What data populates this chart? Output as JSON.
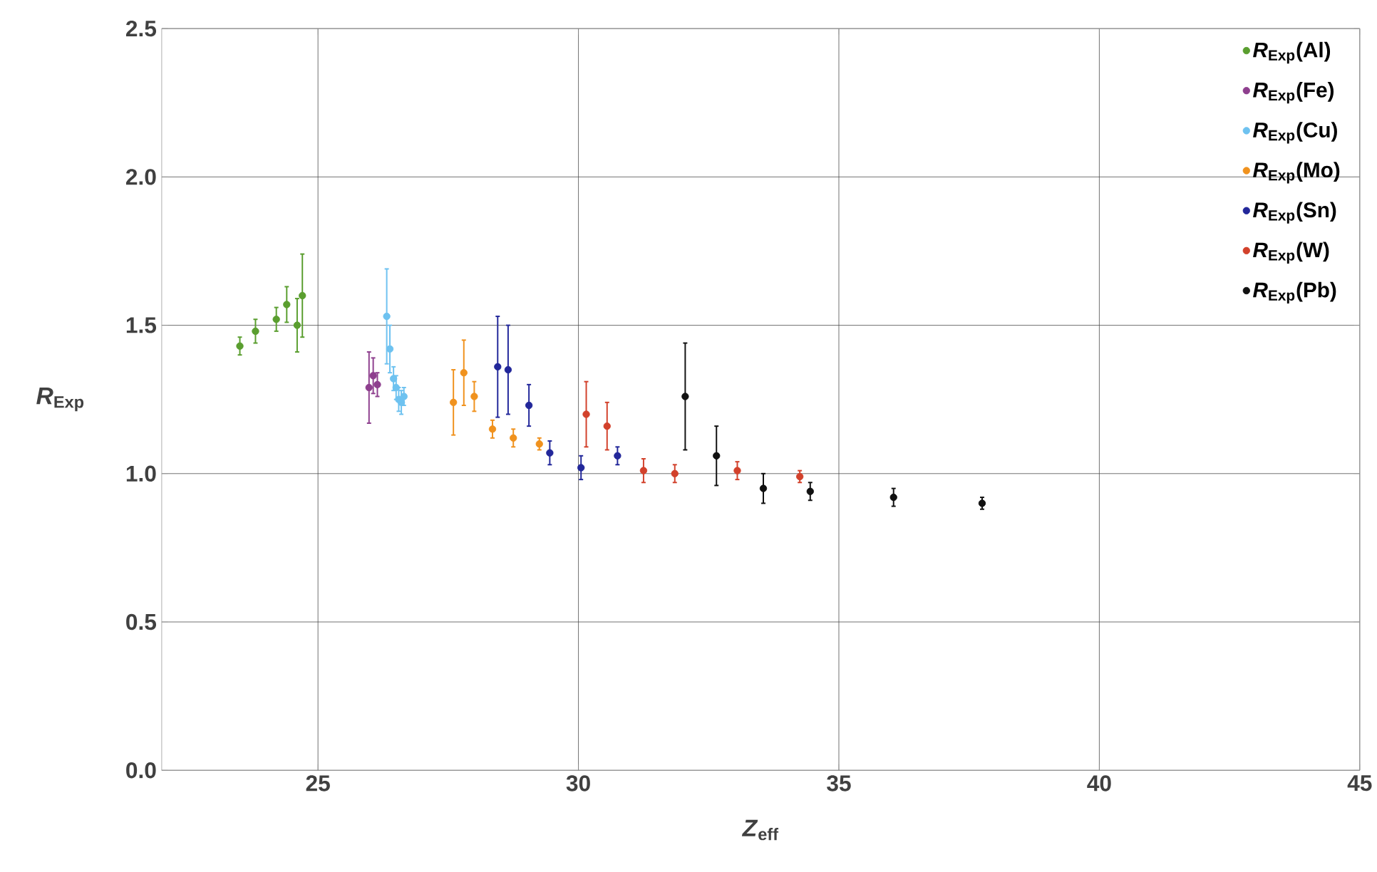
{
  "chart_data": {
    "type": "scatter",
    "xlabel": "*Z*$_{eff}$",
    "ylabel": "*R*$_{Exp}$",
    "xlim": [
      22,
      45
    ],
    "ylim": [
      0,
      2.5
    ],
    "xticks": [
      25,
      30,
      35,
      40,
      45
    ],
    "yticks": [
      {
        "value": 0,
        "label": "0.0"
      },
      {
        "value": 0.5,
        "label": "0.5"
      },
      {
        "value": 1,
        "label": "1.0"
      },
      {
        "value": 1.5,
        "label": "1.5"
      },
      {
        "value": 2,
        "label": "2.0"
      },
      {
        "value": 2.5,
        "label": "2.5"
      }
    ],
    "grid": true,
    "legend": "top right",
    "marker": "circle",
    "series": [
      {
        "name": "*R*$_{Exp}$(Al)",
        "color": "#5a9e2f",
        "x": [
          23.5,
          23.8,
          24.2,
          24.4,
          24.6,
          24.7
        ],
        "values": [
          1.43,
          1.48,
          1.52,
          1.57,
          1.5,
          1.6
        ],
        "errors": [
          0.03,
          0.04,
          0.04,
          0.06,
          0.09,
          0.14
        ]
      },
      {
        "name": "*R*$_{Exp}$(Fe)",
        "color": "#8e3f8e",
        "x": [
          25.98,
          26.06,
          26.14
        ],
        "values": [
          1.29,
          1.33,
          1.3
        ],
        "errors": [
          0.12,
          0.06,
          0.04
        ]
      },
      {
        "name": "*R*$_{Exp}$(Cu)",
        "color": "#6ec2f0",
        "x": [
          26.32,
          26.38,
          26.45,
          26.5,
          26.55,
          26.6,
          26.65
        ],
        "values": [
          1.53,
          1.42,
          1.32,
          1.29,
          1.25,
          1.24,
          1.26
        ],
        "errors": [
          0.16,
          0.08,
          0.04,
          0.04,
          0.04,
          0.04,
          0.03
        ]
      },
      {
        "name": "*R*$_{Exp}$(Mo)",
        "color": "#f0921e",
        "x": [
          27.6,
          27.8,
          28.0,
          28.35,
          28.75,
          29.25
        ],
        "values": [
          1.24,
          1.34,
          1.26,
          1.15,
          1.12,
          1.1
        ],
        "errors": [
          0.11,
          0.11,
          0.05,
          0.03,
          0.03,
          0.02
        ]
      },
      {
        "name": "*R*$_{Exp}$(Sn)",
        "color": "#22279a",
        "x": [
          28.45,
          28.65,
          29.05,
          29.45,
          30.05,
          30.75
        ],
        "values": [
          1.36,
          1.35,
          1.23,
          1.07,
          1.02,
          1.06
        ],
        "errors": [
          0.17,
          0.15,
          0.07,
          0.04,
          0.04,
          0.03
        ]
      },
      {
        "name": "*R*$_{Exp}$(W)",
        "color": "#d2412b",
        "x": [
          30.15,
          30.55,
          31.25,
          31.85,
          33.05,
          34.25
        ],
        "values": [
          1.2,
          1.16,
          1.01,
          1.0,
          1.01,
          0.99
        ],
        "errors": [
          0.11,
          0.08,
          0.04,
          0.03,
          0.03,
          0.02
        ]
      },
      {
        "name": "*R*$_{Exp}$(Pb)",
        "color": "#111111",
        "x": [
          32.05,
          32.65,
          33.55,
          34.45,
          36.05,
          37.75
        ],
        "values": [
          1.26,
          1.06,
          0.95,
          0.94,
          0.92,
          0.9
        ],
        "errors": [
          0.18,
          0.1,
          0.05,
          0.03,
          0.03,
          0.02
        ]
      }
    ]
  }
}
